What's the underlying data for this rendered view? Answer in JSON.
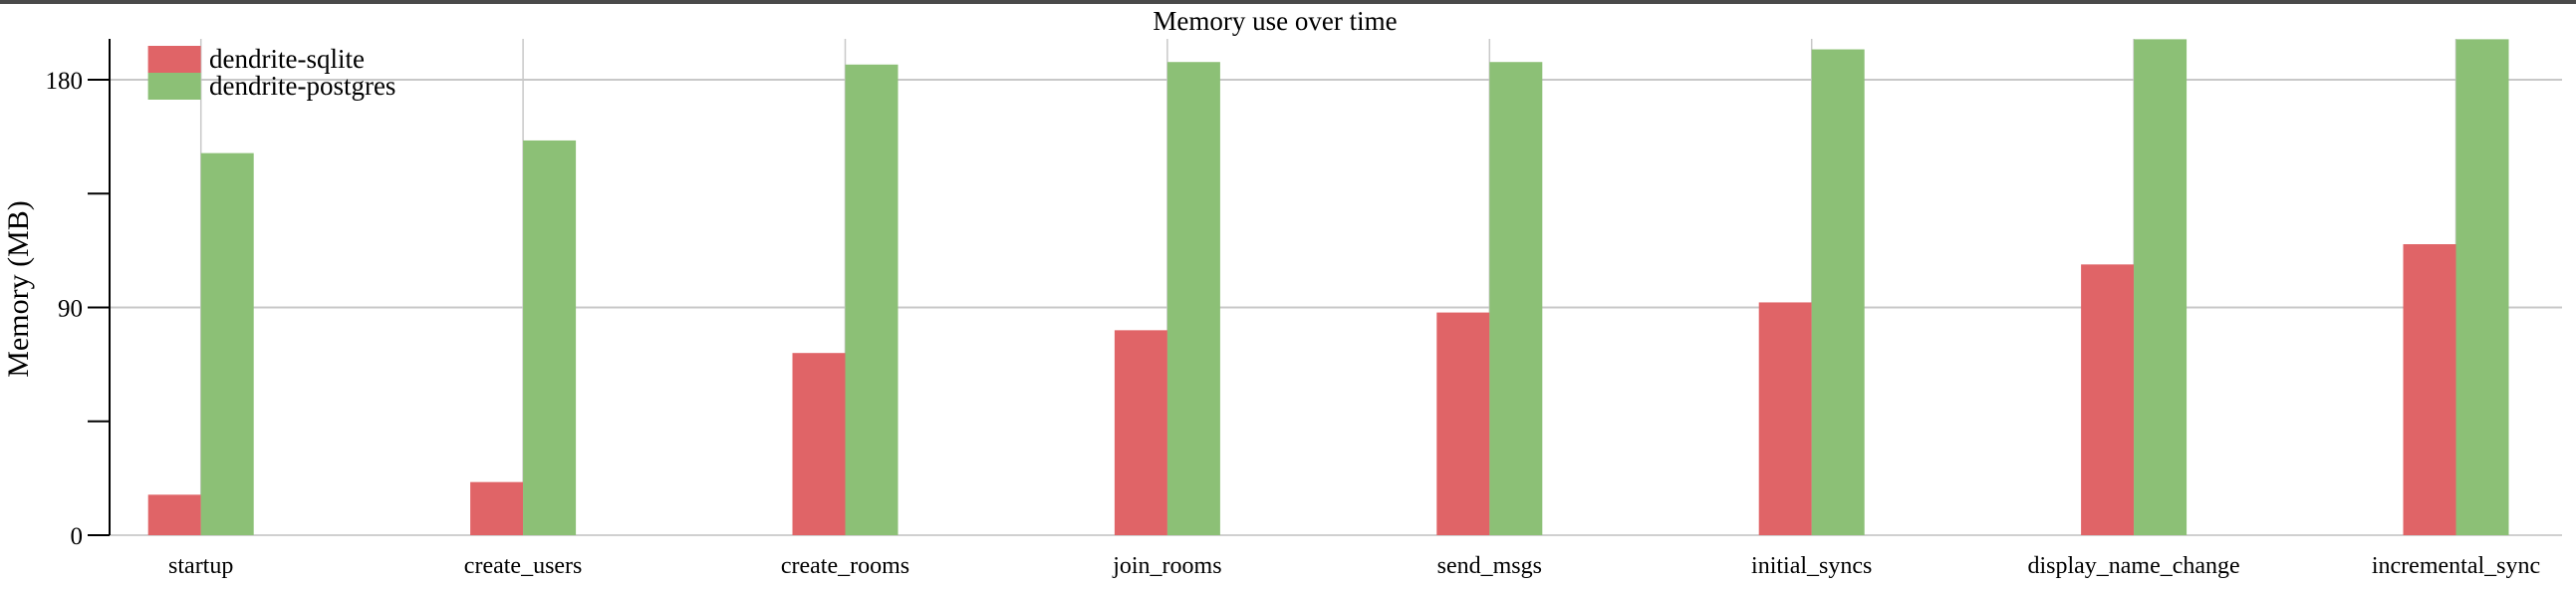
{
  "chart_data": {
    "type": "bar",
    "title": "Memory use over time",
    "xlabel": "",
    "ylabel": "Memory (MB)",
    "categories": [
      "startup",
      "create_users",
      "create_rooms",
      "join_rooms",
      "send_msgs",
      "initial_syncs",
      "display_name_change",
      "incremental_sync"
    ],
    "series": [
      {
        "name": "dendrite-sqlite",
        "color": "#e06467",
        "values": [
          16,
          21,
          72,
          81,
          88,
          92,
          107,
          115
        ]
      },
      {
        "name": "dendrite-postgres",
        "color": "#8cc076",
        "values": [
          151,
          156,
          186,
          187,
          187,
          192,
          196,
          196
        ]
      }
    ],
    "ylim": [
      0,
      196
    ],
    "yticks": [
      0,
      45,
      90,
      135,
      180
    ],
    "ytick_labels": [
      "0",
      "",
      "90",
      "",
      "180"
    ],
    "grid": true,
    "legend": "top-left"
  }
}
